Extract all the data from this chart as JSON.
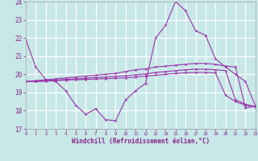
{
  "xlabel": "Windchill (Refroidissement éolien,°C)",
  "line_color": "#9933aa",
  "bg_color": "#c8e8e8",
  "grid_color": "#b0d8d8",
  "xlim": [
    0,
    23
  ],
  "ylim": [
    17,
    24
  ],
  "xticks": [
    0,
    1,
    2,
    3,
    4,
    5,
    6,
    7,
    8,
    9,
    10,
    11,
    12,
    13,
    14,
    15,
    16,
    17,
    18,
    19,
    20,
    21,
    22,
    23
  ],
  "yticks": [
    17,
    18,
    19,
    20,
    21,
    22,
    23,
    24
  ],
  "series1": [
    21.9,
    20.4,
    19.7,
    19.6,
    19.1,
    18.3,
    17.8,
    18.1,
    17.5,
    17.45,
    18.6,
    19.1,
    19.5,
    22.0,
    22.7,
    24.0,
    23.5,
    22.4,
    22.15,
    20.85,
    20.4,
    20.0,
    19.6,
    18.25
  ],
  "series2": [
    19.6,
    19.65,
    19.7,
    19.75,
    19.8,
    19.85,
    19.9,
    19.95,
    20.0,
    20.05,
    20.15,
    20.25,
    20.3,
    20.4,
    20.45,
    20.5,
    20.55,
    20.6,
    20.6,
    20.55,
    20.45,
    20.4,
    18.15,
    18.25
  ],
  "series3": [
    19.6,
    19.62,
    19.65,
    19.68,
    19.72,
    19.75,
    19.78,
    19.82,
    19.85,
    19.88,
    19.92,
    19.97,
    20.02,
    20.1,
    20.15,
    20.2,
    20.25,
    20.28,
    20.28,
    20.25,
    20.2,
    18.6,
    18.35,
    18.22
  ],
  "series4": [
    19.6,
    19.6,
    19.62,
    19.65,
    19.68,
    19.7,
    19.72,
    19.74,
    19.76,
    19.78,
    19.8,
    19.85,
    19.9,
    19.95,
    20.0,
    20.05,
    20.08,
    20.1,
    20.1,
    20.08,
    18.85,
    18.5,
    18.3,
    18.2
  ]
}
